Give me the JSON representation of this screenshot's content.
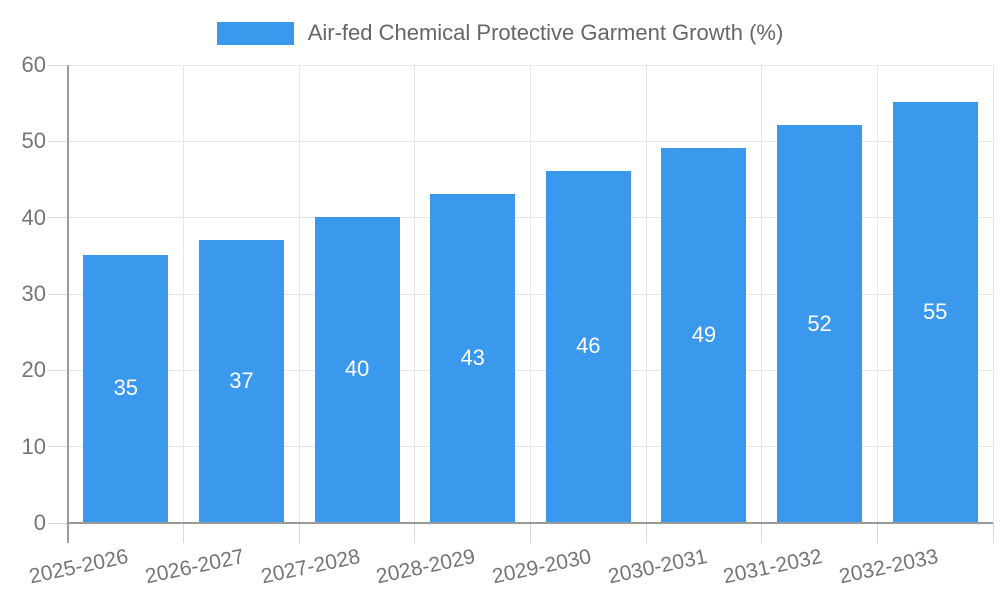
{
  "chart_data": {
    "type": "bar",
    "title": "Air-fed Chemical Protective Garment Growth (%)",
    "categories": [
      "2025-2026",
      "2026-2027",
      "2027-2028",
      "2028-2029",
      "2029-2030",
      "2030-2031",
      "2031-2032",
      "2032-2033"
    ],
    "values": [
      35,
      37,
      40,
      43,
      46,
      49,
      52,
      55
    ],
    "xlabel": "",
    "ylabel": "",
    "ylim": [
      0,
      60
    ],
    "yticks": [
      0,
      10,
      20,
      30,
      40,
      50,
      60
    ],
    "grid": true,
    "legend_position": "top",
    "bar_labels_inside": true,
    "colors": {
      "bar": "#3a99ec",
      "bar_label": "#ffffff",
      "grid": "#e6e6e6",
      "axis": "#9a9a9a",
      "tick": "#d9d9d9",
      "tick_label": "#757575",
      "legend_text": "#666666",
      "background": "#ffffff"
    }
  }
}
